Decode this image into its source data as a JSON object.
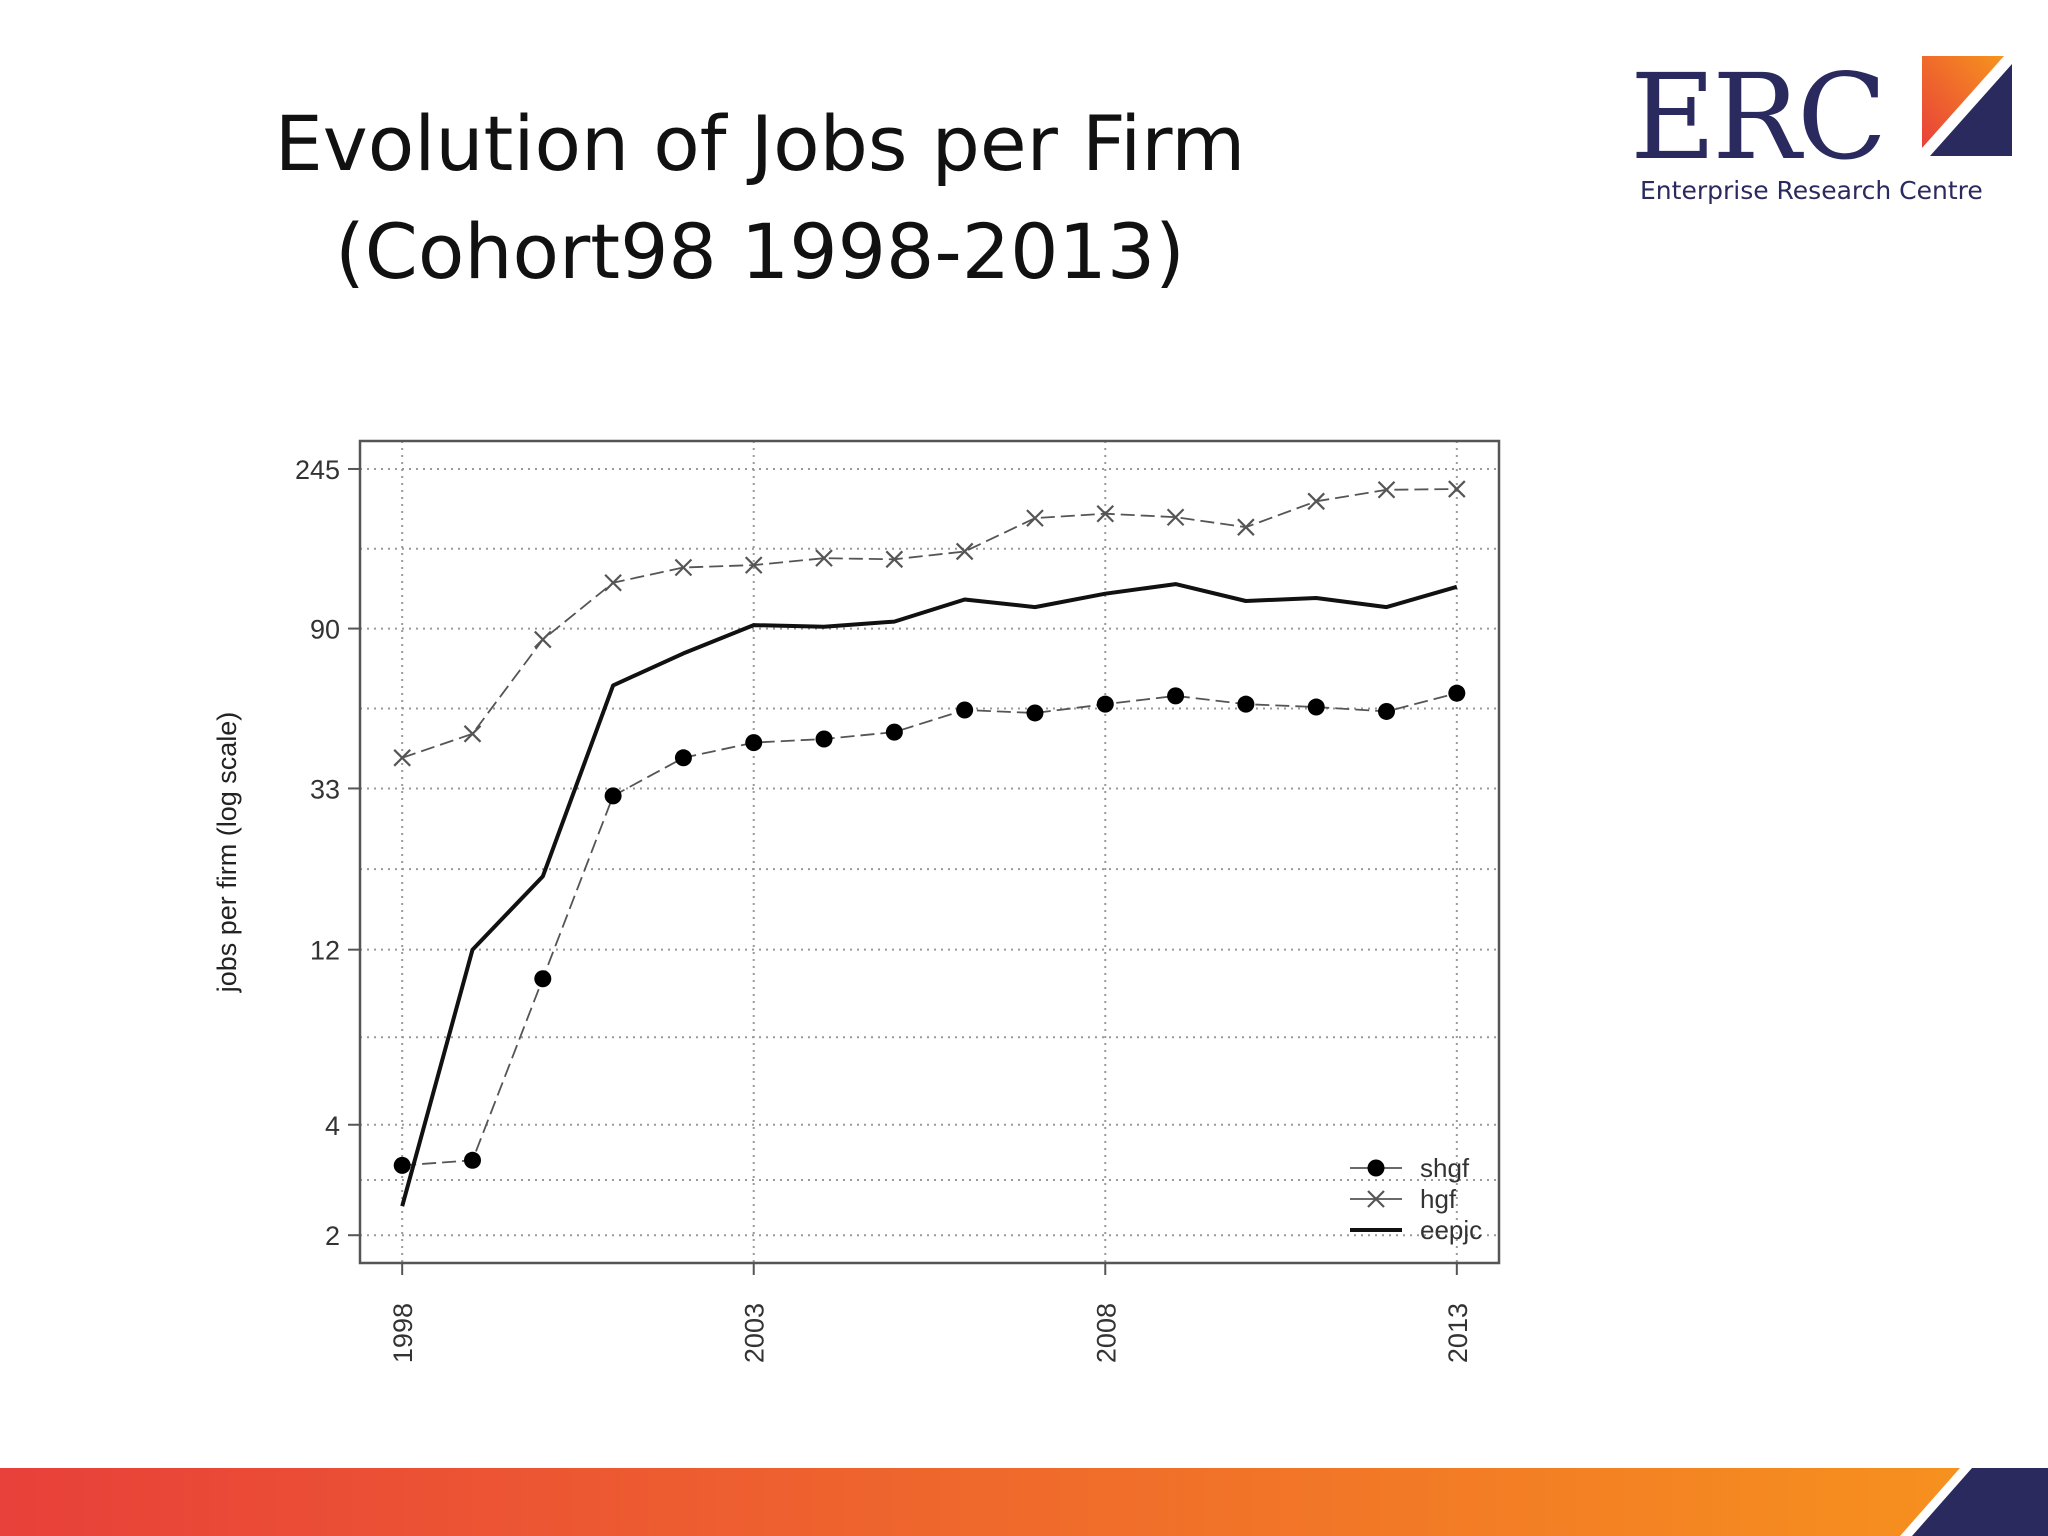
{
  "slide": {
    "title_line1": "Evolution of Jobs per Firm",
    "title_line2": "(Cohort98 1998-2013)"
  },
  "logo": {
    "wordmark": "ERC",
    "tagline": "Enterprise Research Centre"
  },
  "colors": {
    "brand_navy": "#2a2a5e",
    "footer_gradient_start": "#e8403a",
    "footer_gradient_end": "#f7941d"
  },
  "chart_data": {
    "type": "line",
    "title": "",
    "xlabel": "",
    "ylabel": "jobs per firm (log scale)",
    "y_scale": "log",
    "ylim": [
      1.68,
      292
    ],
    "xlim": [
      1997.4,
      2013.6
    ],
    "x_ticks": [
      1998,
      2003,
      2008,
      2013
    ],
    "y_ticks": [
      2,
      4,
      12,
      33,
      90,
      245
    ],
    "grid": true,
    "legend_position": "bottom-right",
    "x": [
      1998,
      1999,
      2000,
      2001,
      2002,
      2003,
      2004,
      2005,
      2006,
      2007,
      2008,
      2009,
      2010,
      2011,
      2012,
      2013
    ],
    "series": [
      {
        "name": "shgf",
        "marker": "circle",
        "line": "dashed-thin",
        "values": [
          3.1,
          3.2,
          10.0,
          31.5,
          40.0,
          44.0,
          45.0,
          47.0,
          54.0,
          53.0,
          56.0,
          59.0,
          56.0,
          55.0,
          53.5,
          60.0
        ]
      },
      {
        "name": "hgf",
        "marker": "x",
        "line": "dashed-thin",
        "values": [
          40.0,
          46.5,
          84.0,
          120.0,
          132.0,
          134.0,
          140.0,
          139.0,
          146.0,
          180.0,
          185.0,
          181.0,
          170.0,
          200.0,
          215.0,
          216.0
        ]
      },
      {
        "name": "eepjc",
        "marker": "none",
        "line": "solid-thick",
        "values": [
          2.4,
          12.0,
          19.0,
          63.0,
          77.0,
          92.0,
          91.0,
          94.0,
          108.0,
          103.0,
          112.0,
          119.0,
          107.0,
          109.0,
          103.0,
          117.0
        ]
      }
    ]
  }
}
